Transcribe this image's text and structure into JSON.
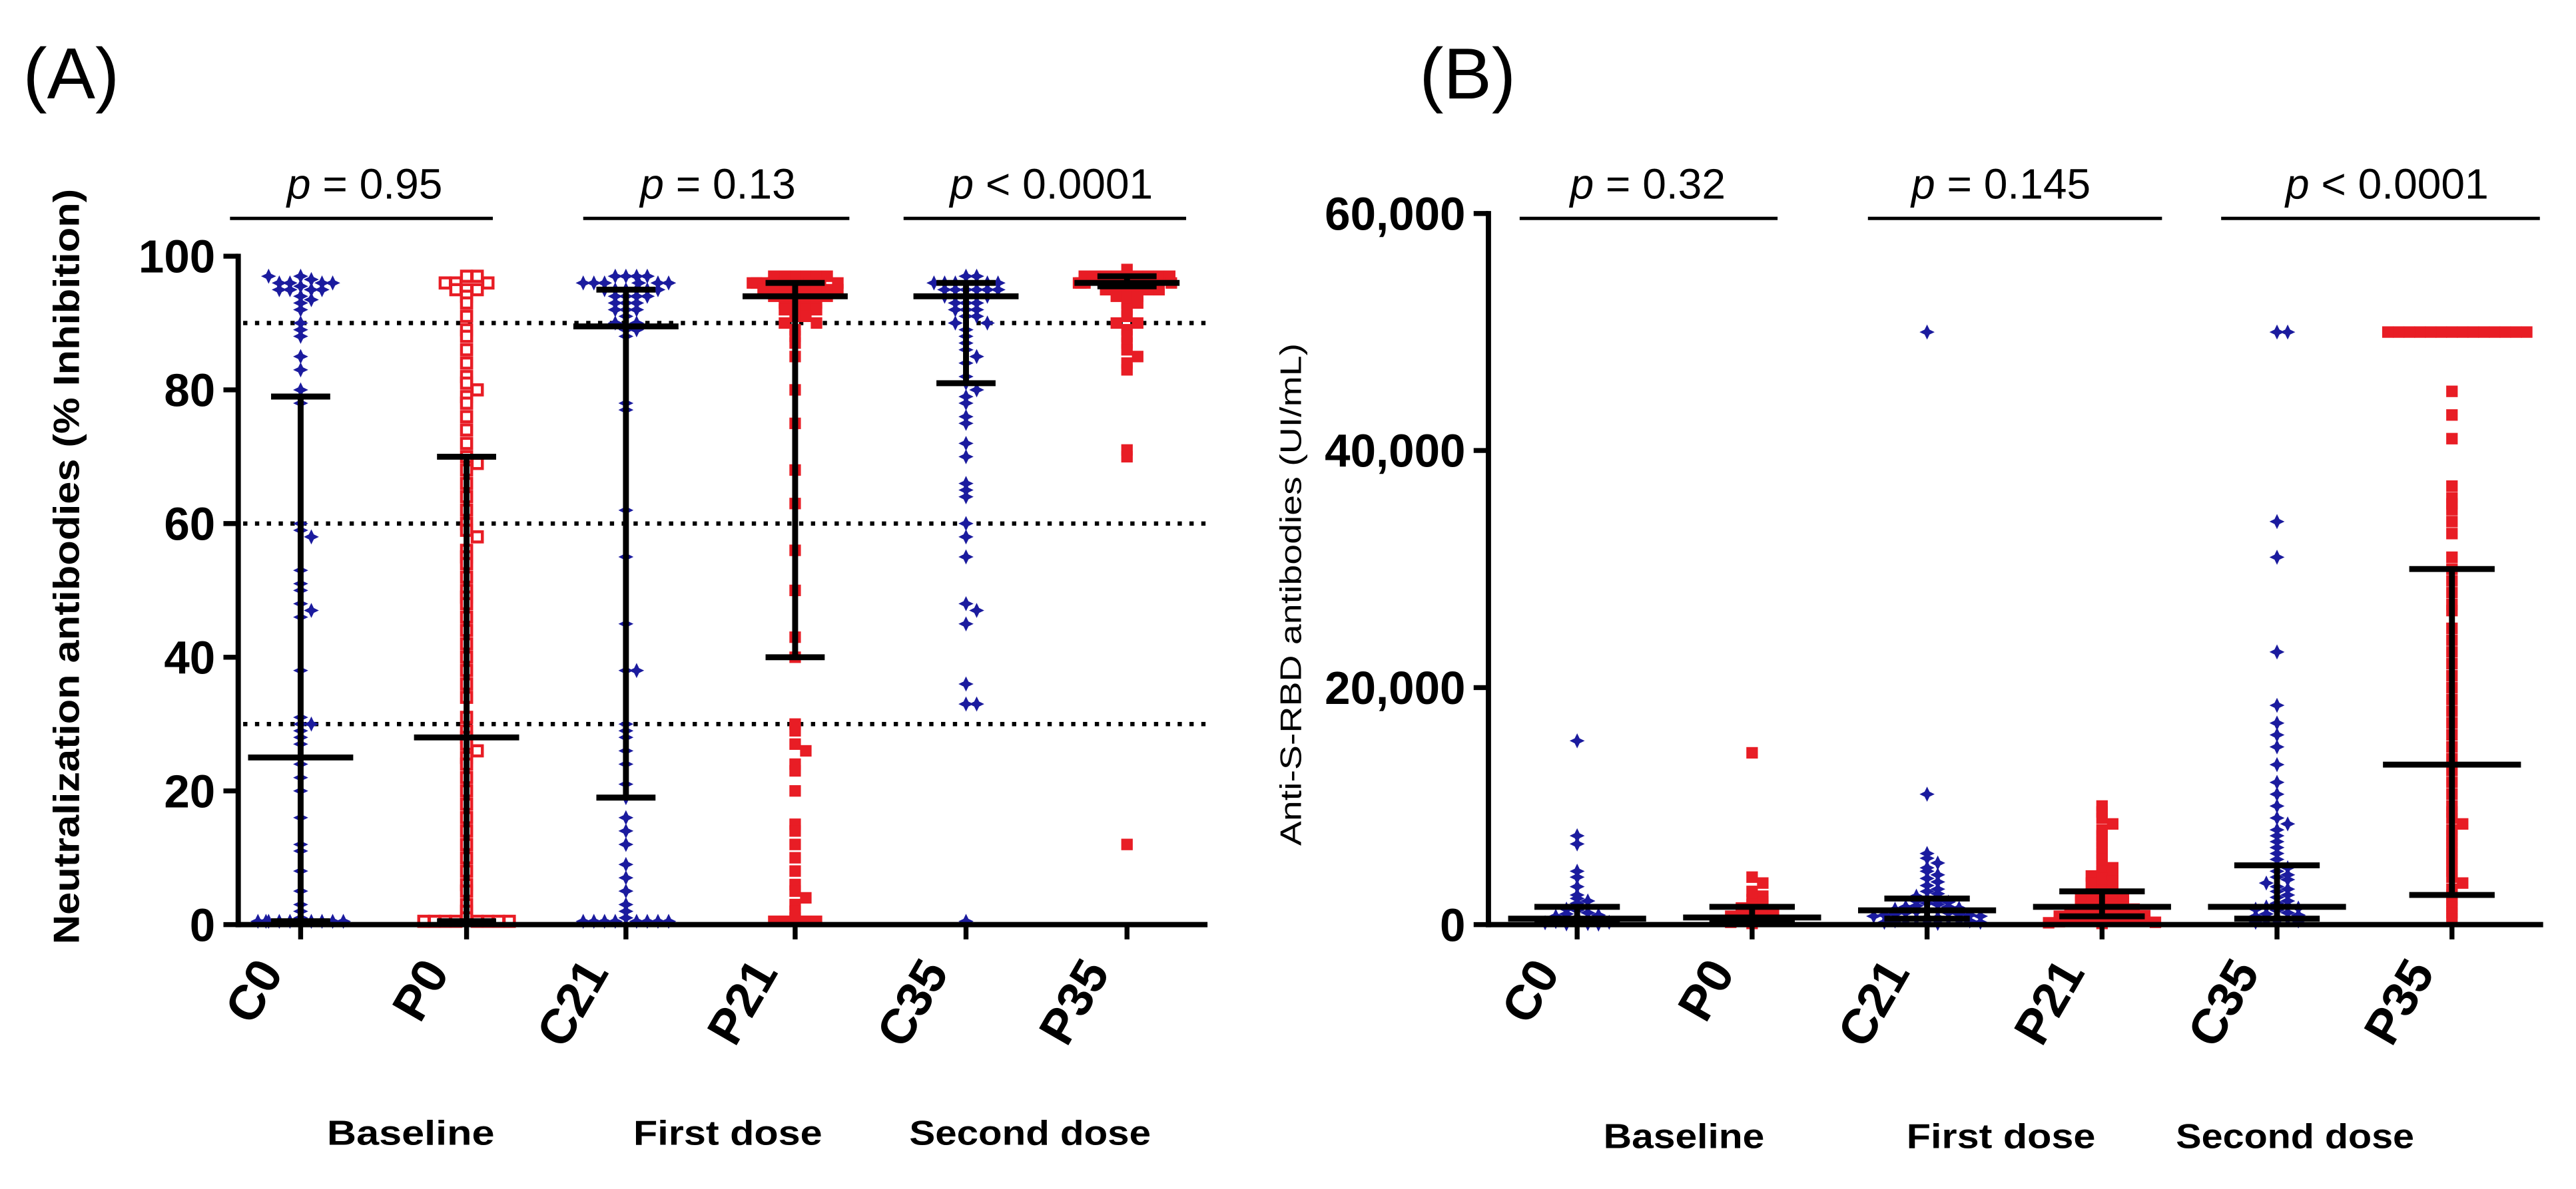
{
  "colors": {
    "control": "#1b1b9e",
    "patient": "#e81d25",
    "axis": "#000000"
  },
  "chart_data": [
    {
      "type": "scatter",
      "panel_label": "(A)",
      "title": "",
      "xlabel": "",
      "ylabel": "Neutralization antibodies (% Inhibition)",
      "ylim": [
        0,
        100
      ],
      "yticks": [
        0,
        20,
        40,
        60,
        80,
        100
      ],
      "ytick_labels": [
        "0",
        "20",
        "40",
        "60",
        "80",
        "100"
      ],
      "reference_lines": [
        90,
        60,
        30
      ],
      "categories": [
        "C0",
        "P0",
        "C21",
        "P21",
        "C35",
        "P35"
      ],
      "group_labels": [
        "Baseline",
        "First dose",
        "Second dose"
      ],
      "comparisons": [
        {
          "text": "p = 0.95"
        },
        {
          "text": "p = 0.13"
        },
        {
          "text": "p < 0.0001"
        }
      ],
      "series": [
        {
          "name": "C0",
          "color": "#1b1b9e",
          "open": false,
          "median": 25,
          "q1": 0.5,
          "q3": 79,
          "values": [
            97,
            96.5,
            96,
            96,
            96,
            95.5,
            95,
            95,
            95,
            96,
            97,
            95,
            94,
            93.5,
            93,
            92,
            90,
            89,
            88,
            85,
            83,
            80,
            78,
            60,
            59,
            58,
            53,
            51,
            50,
            48,
            47,
            46,
            38,
            31,
            30,
            30,
            29,
            28,
            27,
            25,
            24,
            22,
            20,
            16,
            12,
            11,
            8,
            5,
            3,
            2,
            1,
            0.5,
            0.5,
            0.5,
            0.5,
            0.5,
            0.5,
            0.5,
            0.5,
            0.5
          ]
        },
        {
          "name": "P0",
          "color": "#e81d25",
          "open": true,
          "median": 28,
          "q1": 0.5,
          "q3": 70,
          "values": [
            97,
            97,
            96,
            96,
            96,
            95,
            95,
            95,
            94,
            93,
            91,
            89,
            88,
            86,
            84,
            82,
            81,
            80,
            79,
            78,
            76,
            74,
            72,
            70,
            69,
            68,
            66,
            64,
            62,
            60,
            59,
            58,
            56,
            55,
            54,
            52,
            50,
            49,
            48,
            46,
            44,
            42,
            40,
            38,
            36,
            34,
            31,
            29,
            28,
            27,
            26,
            25,
            24,
            22,
            20,
            18,
            16,
            14,
            12,
            10,
            8,
            6,
            5,
            3,
            2,
            1,
            0.5,
            0.5,
            0.5,
            0.5,
            0.5,
            0.5,
            0.5,
            0.5
          ]
        },
        {
          "name": "C21",
          "color": "#1b1b9e",
          "open": false,
          "median": 89.5,
          "q1": 19,
          "q3": 95,
          "values": [
            97,
            97,
            97,
            97,
            96,
            96,
            96,
            96,
            96,
            96,
            95,
            95,
            95,
            95,
            95,
            95,
            94,
            94,
            94,
            94,
            93,
            93,
            93,
            92,
            92,
            92,
            91,
            90,
            90,
            89,
            89,
            88,
            78,
            77,
            62,
            55,
            45,
            38,
            38,
            30,
            29,
            28,
            26,
            24,
            21,
            19,
            16,
            14,
            12,
            9,
            7,
            5,
            3,
            2,
            1,
            0.5,
            0.5,
            0.5,
            0.5,
            0.5,
            0.5,
            0.5,
            0.5
          ]
        },
        {
          "name": "P21",
          "color": "#e81d25",
          "open": false,
          "median": 94,
          "q1": 40,
          "q3": 96,
          "values": [
            97,
            97,
            97,
            97,
            97,
            97,
            96,
            96,
            96,
            96,
            96,
            96,
            96,
            95,
            95,
            95,
            95,
            95,
            95,
            95,
            95,
            94,
            94,
            94,
            94,
            94,
            94,
            93,
            93,
            93,
            93,
            92,
            92,
            92,
            92,
            91,
            91,
            90,
            90,
            89,
            88,
            87,
            85,
            80,
            75,
            68,
            63,
            56,
            50,
            43,
            40,
            30,
            29,
            27,
            26,
            24,
            23,
            20,
            15,
            14,
            12,
            10,
            8,
            6,
            5,
            4,
            3,
            2,
            1,
            0.5,
            0.5,
            0.5,
            0.5
          ]
        },
        {
          "name": "C35",
          "color": "#1b1b9e",
          "open": false,
          "median": 94,
          "q1": 81,
          "q3": 96,
          "values": [
            97,
            97,
            96,
            96,
            96,
            96,
            96,
            95,
            95,
            95,
            95,
            95,
            95,
            94,
            94,
            94,
            94,
            94,
            93,
            93,
            93,
            92,
            92,
            92,
            91,
            91,
            90,
            90,
            89,
            88,
            87,
            86,
            85,
            84,
            82,
            81,
            80,
            79,
            78,
            76,
            75,
            72,
            70,
            66,
            65,
            64,
            60,
            58,
            55,
            48,
            47,
            45,
            36,
            33,
            33,
            0.5
          ]
        },
        {
          "name": "P35",
          "color": "#e81d25",
          "open": false,
          "median": 96,
          "q1": 95.5,
          "q3": 97,
          "values": [
            98,
            97,
            97,
            97,
            97,
            97,
            97,
            97,
            97,
            97,
            96,
            96,
            96,
            96,
            96,
            96,
            96,
            96,
            96,
            96,
            96,
            95,
            95,
            95,
            95,
            95,
            95,
            94,
            94,
            94,
            93,
            93,
            92,
            91,
            90,
            90,
            89,
            88,
            87,
            86,
            85,
            84,
            83,
            71,
            70,
            12
          ]
        }
      ]
    },
    {
      "type": "scatter",
      "panel_label": "(B)",
      "title": "",
      "xlabel": "",
      "ylabel": "Anti-S-RBD antibodies (UI/mL)",
      "ylim": [
        0,
        60000
      ],
      "yticks": [
        0,
        20000,
        40000,
        60000
      ],
      "ytick_labels": [
        "0",
        "20,000",
        "40,000",
        "60,000"
      ],
      "reference_lines": [],
      "categories": [
        "C0",
        "P0",
        "C21",
        "P21",
        "C35",
        "P35"
      ],
      "group_labels": [
        "Baseline",
        "First dose",
        "Second dose"
      ],
      "comparisons": [
        {
          "text": "p = 0.32"
        },
        {
          "text": "p = 0.145"
        },
        {
          "text": "p < 0.0001"
        }
      ],
      "series": [
        {
          "name": "C0",
          "color": "#1b1b9e",
          "open": false,
          "median": 500,
          "q1": 100,
          "q3": 1500,
          "values": [
            15500,
            7500,
            6800,
            4500,
            4000,
            3200,
            2500,
            2200,
            2000,
            1800,
            1500,
            1300,
            1200,
            1000,
            900,
            800,
            700,
            600,
            500,
            400,
            300,
            250,
            200,
            150,
            100,
            80,
            60,
            40
          ]
        },
        {
          "name": "P0",
          "color": "#e81d25",
          "open": false,
          "median": 600,
          "q1": 200,
          "q3": 1500,
          "values": [
            14500,
            4000,
            3500,
            2800,
            2400,
            2100,
            1900,
            1700,
            1600,
            1400,
            1200,
            1000,
            900,
            800,
            700,
            600,
            500,
            400,
            300,
            200,
            100
          ]
        },
        {
          "name": "C21",
          "color": "#1b1b9e",
          "open": false,
          "median": 1200,
          "q1": 500,
          "q3": 2200,
          "values": [
            50000,
            11000,
            6000,
            5600,
            5200,
            4800,
            4500,
            4200,
            3900,
            3600,
            3300,
            3000,
            2800,
            2600,
            2400,
            2200,
            2000,
            2000,
            1900,
            1800,
            1700,
            1600,
            1500,
            1500,
            1400,
            1300,
            1200,
            1200,
            1100,
            1000,
            1000,
            900,
            900,
            800,
            800,
            700,
            700,
            600,
            600,
            500,
            500,
            400,
            400,
            300,
            300,
            200,
            200,
            100,
            100
          ]
        },
        {
          "name": "P21",
          "color": "#e81d25",
          "open": false,
          "median": 1500,
          "q1": 700,
          "q3": 2800,
          "values": [
            10000,
            9500,
            9000,
            8500,
            8000,
            7500,
            7000,
            6500,
            6000,
            5500,
            5000,
            4800,
            4500,
            4300,
            4100,
            3900,
            3700,
            3500,
            3300,
            3100,
            2900,
            2800,
            2600,
            2500,
            2400,
            2300,
            2200,
            2100,
            2000,
            1900,
            1800,
            1700,
            1600,
            1500,
            1400,
            1300,
            1200,
            1100,
            1000,
            950,
            900,
            850,
            800,
            750,
            700,
            650,
            600,
            550,
            500,
            450,
            400,
            350,
            300,
            250,
            200,
            150,
            100
          ]
        },
        {
          "name": "C35",
          "color": "#1b1b9e",
          "open": false,
          "median": 1500,
          "q1": 500,
          "q3": 5000,
          "values": [
            50000,
            50000,
            34000,
            31000,
            23000,
            18500,
            17000,
            16000,
            15000,
            13500,
            12000,
            11000,
            10000,
            9000,
            8500,
            8000,
            7500,
            7000,
            6500,
            6000,
            5500,
            5000,
            4800,
            4500,
            4200,
            4000,
            3800,
            3500,
            3200,
            3000,
            2800,
            2500,
            2300,
            2000,
            1800,
            1600,
            1500,
            1400,
            1300,
            1200,
            1000,
            900,
            800,
            700,
            600,
            500,
            400,
            300,
            200,
            100
          ]
        },
        {
          "name": "P35",
          "color": "#e81d25",
          "open": false,
          "median": 13500,
          "q1": 2500,
          "q3": 30000,
          "values": [
            50000,
            50000,
            50000,
            50000,
            50000,
            50000,
            50000,
            50000,
            50000,
            50000,
            50000,
            50000,
            50000,
            50000,
            45000,
            43000,
            41000,
            37000,
            36000,
            35500,
            35000,
            34000,
            33000,
            31000,
            30000,
            29000,
            28000,
            27000,
            26500,
            25000,
            24000,
            23000,
            22000,
            21000,
            20000,
            19000,
            18000,
            17000,
            16000,
            15000,
            14000,
            13000,
            12000,
            11000,
            10000,
            9500,
            9000,
            8500,
            8000,
            7500,
            7000,
            6500,
            6000,
            5500,
            5000,
            4500,
            4000,
            3500,
            3000,
            2500,
            2000,
            1500,
            1000,
            500
          ]
        }
      ]
    }
  ]
}
